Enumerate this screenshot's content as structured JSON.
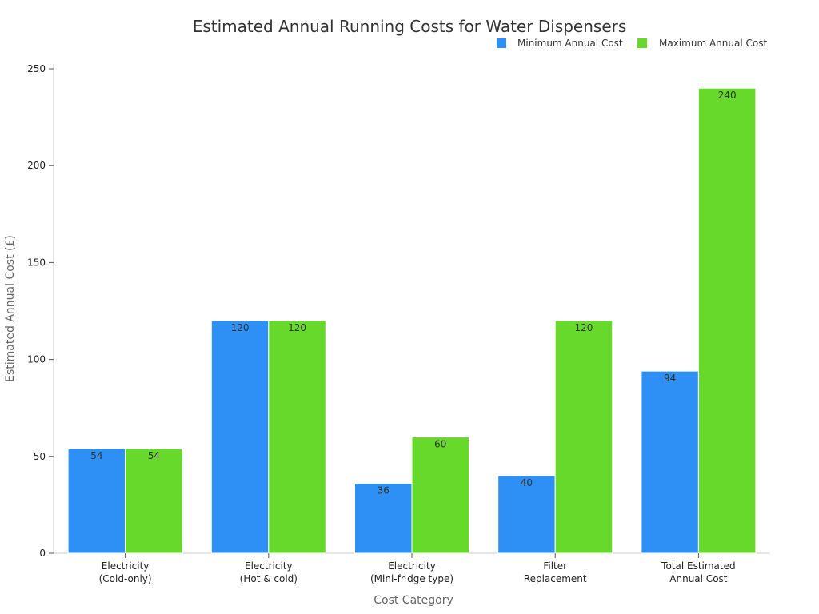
{
  "chart_data": {
    "type": "bar",
    "title": "Estimated Annual Running Costs for Water Dispensers",
    "xlabel": "Cost Category",
    "ylabel": "Estimated Annual Cost (£)",
    "ylim": [
      0,
      250
    ],
    "yticks": [
      "0",
      "50",
      "100",
      "150",
      "200",
      "250"
    ],
    "ytick_values": [
      0,
      50,
      100,
      150,
      200,
      250
    ],
    "grid": false,
    "legend_position": "top-right",
    "categories": [
      [
        "Electricity",
        "(Cold-only)"
      ],
      [
        "Electricity",
        "(Hot & cold)"
      ],
      [
        "Electricity",
        "(Mini-fridge type)"
      ],
      [
        "Filter",
        "Replacement"
      ],
      [
        "Total Estimated",
        "Annual Cost"
      ]
    ],
    "series": [
      {
        "name": "Minimum Annual Cost",
        "color": "#2E90F5",
        "values": [
          54,
          120,
          36,
          40,
          94
        ]
      },
      {
        "name": "Maximum Annual Cost",
        "color": "#66D92A",
        "values": [
          54,
          120,
          60,
          120,
          240
        ]
      }
    ]
  }
}
